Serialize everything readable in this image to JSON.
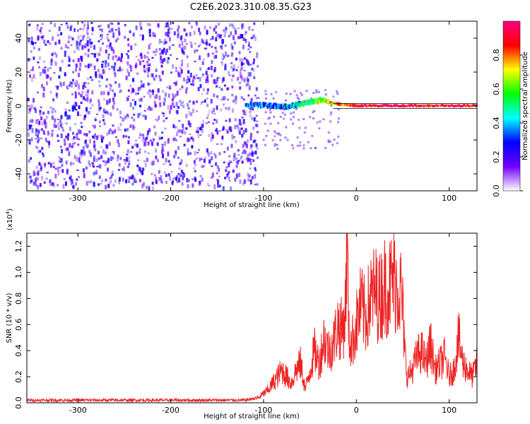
{
  "figure_title": "C2E6.2023.310.08.35.G23",
  "chart_data": [
    {
      "type": "heatmap",
      "xlabel": "Height of straight line (km)",
      "ylabel": "Frequency (Hz)",
      "xlim": [
        -355,
        130
      ],
      "ylim": [
        -50,
        50
      ],
      "xticks": [
        -300,
        -200,
        -100,
        0,
        100
      ],
      "yticks": [
        -40,
        -20,
        0,
        20,
        40
      ],
      "colorbar": {
        "label": "Normalized spectral amplitude",
        "range": [
          0,
          1
        ],
        "ticks": [
          "0.0",
          "0.2",
          "0.4",
          "0.6",
          "0.8"
        ],
        "colors": [
          "#ffffff",
          "#7000ff",
          "#0000ff",
          "#00ffff",
          "#00ff00",
          "#ffff00",
          "#ff0000",
          "#ff0080"
        ]
      },
      "noise_region_x": [
        -355,
        -105
      ],
      "signal_track": [
        {
          "x": -120,
          "y": 0,
          "amp": 0.3
        },
        {
          "x": -95,
          "y": 0,
          "amp": 0.35
        },
        {
          "x": -75,
          "y": -1,
          "amp": 0.4
        },
        {
          "x": -60,
          "y": 1,
          "amp": 0.45
        },
        {
          "x": -40,
          "y": 3,
          "amp": 0.6
        },
        {
          "x": -20,
          "y": 1,
          "amp": 0.8
        },
        {
          "x": 0,
          "y": 0,
          "amp": 0.9
        },
        {
          "x": 40,
          "y": 0,
          "amp": 0.95
        },
        {
          "x": 80,
          "y": 0,
          "amp": 0.9
        },
        {
          "x": 130,
          "y": 0,
          "amp": 0.9
        }
      ]
    },
    {
      "type": "line",
      "xlabel": "Height of straight line (km)",
      "ylabel": "SNR (10 * v/v)",
      "y_multiplier": "(x10",
      "y_exponent": "4",
      "y_multiplier_close": ")",
      "xlim": [
        -355,
        130
      ],
      "ylim": [
        0,
        1.3
      ],
      "xticks": [
        -300,
        -200,
        -100,
        0,
        100
      ],
      "yticks": [
        "0.0",
        "0.2",
        "0.4",
        "0.6",
        "0.8",
        "1.0",
        "1.2"
      ],
      "series": [
        {
          "color": "#ee2222",
          "x": [
            -355,
            -300,
            -200,
            -120,
            -105,
            -95,
            -85,
            -80,
            -75,
            -70,
            -65,
            -60,
            -55,
            -50,
            -45,
            -40,
            -35,
            -30,
            -25,
            -20,
            -15,
            -12,
            -10,
            -8,
            -5,
            0,
            5,
            10,
            15,
            20,
            25,
            30,
            35,
            40,
            45,
            48,
            50,
            52,
            55,
            60,
            65,
            70,
            75,
            80,
            85,
            90,
            95,
            100,
            105,
            110,
            115,
            120,
            125,
            130
          ],
          "y": [
            0.02,
            0.02,
            0.02,
            0.02,
            0.04,
            0.1,
            0.2,
            0.25,
            0.2,
            0.15,
            0.25,
            0.3,
            0.1,
            0.25,
            0.4,
            0.3,
            0.5,
            0.4,
            0.45,
            0.6,
            0.55,
            0.7,
            1.3,
            0.5,
            0.45,
            0.6,
            0.75,
            0.65,
            0.8,
            0.85,
            0.8,
            0.9,
            0.88,
            0.95,
            0.9,
            0.85,
            0.7,
            0.4,
            0.2,
            0.25,
            0.35,
            0.4,
            0.3,
            0.45,
            0.25,
            0.3,
            0.35,
            0.2,
            0.25,
            0.5,
            0.3,
            0.25,
            0.2,
            0.3
          ]
        }
      ]
    }
  ]
}
